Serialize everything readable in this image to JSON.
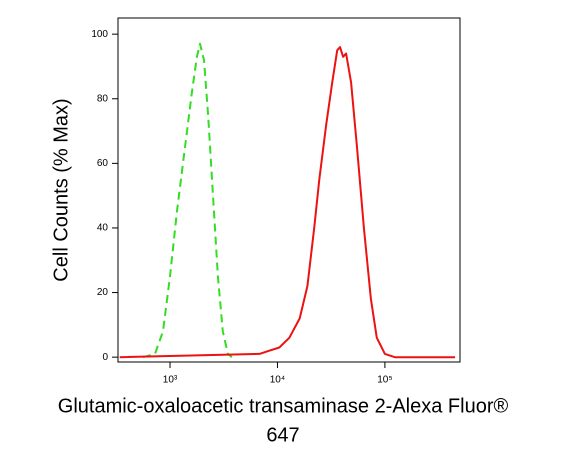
{
  "chart_data": {
    "type": "line",
    "ylabel": "Cell Counts (% Max)",
    "xlabel": [
      "Glutamic-oxaloacetic transaminase 2-Alexa Fluor®",
      "647"
    ],
    "xscale": "log",
    "xlim": [
      328,
      500000
    ],
    "xticks": [
      {
        "value": 1000,
        "label": "10³"
      },
      {
        "value": 10000,
        "label": "10⁴"
      },
      {
        "value": 100000,
        "label": "10⁵"
      }
    ],
    "ylim": [
      -1.5,
      105
    ],
    "yticks": [
      0,
      20,
      40,
      60,
      80,
      100
    ],
    "series": [
      {
        "color": "#33dd22",
        "dash": true,
        "x": [
          560,
          725,
          860,
          1000,
          1160,
          1380,
          1600,
          1780,
          1900,
          2070,
          2260,
          2510,
          2790,
          3100,
          3460,
          3770
        ],
        "values": [
          0,
          1,
          8,
          25,
          45,
          65,
          82,
          93,
          97,
          92,
          75,
          50,
          25,
          8,
          1,
          0
        ]
      },
      {
        "color": "#ee1111",
        "dash": false,
        "x": [
          340,
          6800,
          8400,
          10400,
          12900,
          16100,
          19000,
          22000,
          24500,
          28400,
          32300,
          36000,
          38200,
          40800,
          43500,
          48500,
          55000,
          63700,
          74000,
          84000,
          100000,
          124000,
          450000
        ],
        "values": [
          0,
          1,
          2,
          3,
          6,
          12,
          22,
          40,
          55,
          72,
          85,
          95,
          96,
          93,
          94,
          85,
          65,
          40,
          18,
          6,
          1,
          0,
          0
        ]
      }
    ]
  }
}
